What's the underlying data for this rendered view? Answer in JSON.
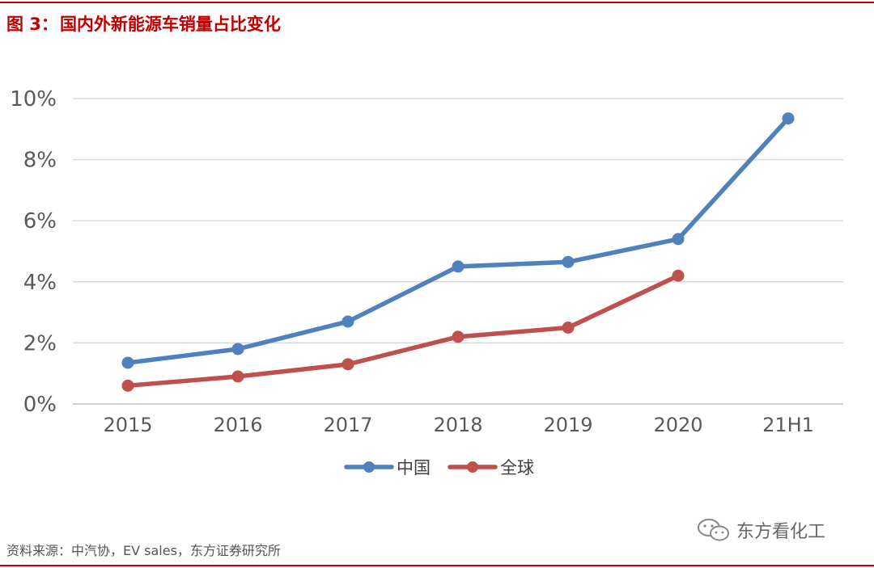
{
  "figure": {
    "label": "图 3：",
    "title": "国内外新能源车销量占比变化"
  },
  "source": "资料来源：中汽协，EV sales，东方证券研究所",
  "watermark": {
    "text": "东方看化工",
    "icon": "wechat-icon"
  },
  "colors": {
    "title": "#c00000",
    "rule": "#c00000",
    "china": "#4f81bd",
    "global": "#c0504d",
    "grid": "#d9d9d9",
    "tick": "#595959"
  },
  "chart_data": {
    "type": "line",
    "categories": [
      "2015",
      "2016",
      "2017",
      "2018",
      "2019",
      "2020",
      "21H1"
    ],
    "yticks": [
      "0%",
      "2%",
      "4%",
      "6%",
      "8%",
      "10%"
    ],
    "ylim": [
      0,
      10
    ],
    "grid": true,
    "legend_position": "bottom",
    "series": [
      {
        "name": "中国",
        "color": "#4f81bd",
        "values": [
          1.35,
          1.8,
          2.7,
          4.5,
          4.65,
          5.4,
          9.35
        ]
      },
      {
        "name": "全球",
        "color": "#c0504d",
        "values": [
          0.6,
          0.9,
          1.3,
          2.2,
          2.5,
          4.2,
          null
        ]
      }
    ]
  }
}
